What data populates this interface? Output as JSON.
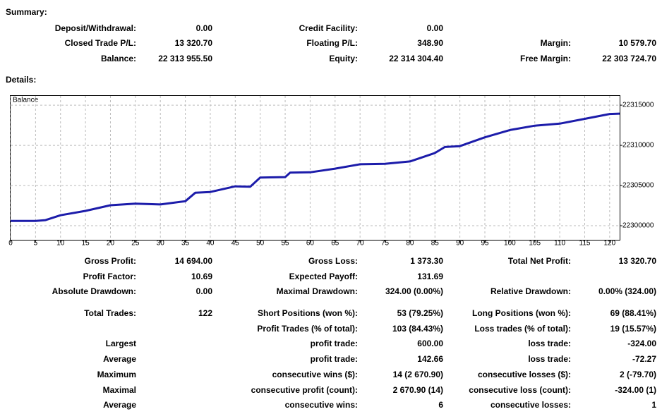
{
  "summary": {
    "title": "Summary:",
    "rows": [
      [
        "Deposit/Withdrawal:",
        "0.00",
        "Credit Facility:",
        "0.00",
        null,
        null
      ],
      [
        "Closed Trade P/L:",
        "13 320.70",
        "Floating P/L:",
        "348.90",
        "Margin:",
        "10 579.70"
      ],
      [
        "Balance:",
        "22 313 955.50",
        "Equity:",
        "22 314 304.40",
        "Free Margin:",
        "22 303 724.70"
      ]
    ]
  },
  "details": {
    "title": "Details:",
    "rows": [
      [
        "Gross Profit:",
        "14 694.00",
        "Gross Loss:",
        "1 373.30",
        "Total Net Profit:",
        "13 320.70"
      ],
      [
        "Profit Factor:",
        "10.69",
        "Expected Payoff:",
        "131.69",
        null,
        null
      ],
      [
        "Absolute Drawdown:",
        "0.00",
        "Maximal Drawdown:",
        "324.00 (0.00%)",
        "Relative Drawdown:",
        "0.00% (324.00)"
      ],
      [
        "Total Trades:",
        "122",
        "Short Positions (won %):",
        "53 (79.25%)",
        "Long Positions (won %):",
        "69 (88.41%)"
      ],
      [
        null,
        null,
        "Profit Trades (% of total):",
        "103 (84.43%)",
        "Loss trades (% of total):",
        "19 (15.57%)"
      ],
      [
        "Largest",
        null,
        "profit trade:",
        "600.00",
        "loss trade:",
        "-324.00"
      ],
      [
        "Average",
        null,
        "profit trade:",
        "142.66",
        "loss trade:",
        "-72.27"
      ],
      [
        "Maximum",
        null,
        "consecutive wins ($):",
        "14 (2 670.90)",
        "consecutive losses ($):",
        "2 (-79.70)"
      ],
      [
        "Maximal",
        null,
        "consecutive profit (count):",
        "2 670.90 (14)",
        "consecutive loss (count):",
        "-324.00 (1)"
      ],
      [
        "Average",
        null,
        "consecutive wins:",
        "6",
        "consecutive losses:",
        "1"
      ]
    ]
  },
  "chart_data": {
    "type": "line",
    "x": [
      0,
      5,
      7,
      10,
      15,
      20,
      25,
      30,
      35,
      37,
      40,
      45,
      48,
      50,
      55,
      56,
      60,
      65,
      70,
      75,
      80,
      85,
      87,
      90,
      95,
      100,
      105,
      110,
      115,
      120,
      122
    ],
    "series": [
      {
        "name": "Balance",
        "color": "#1c1caa",
        "values": [
          22300600,
          22300600,
          22300700,
          22301300,
          22301850,
          22302550,
          22302750,
          22302650,
          22303050,
          22304100,
          22304200,
          22304900,
          22304850,
          22306000,
          22306050,
          22306600,
          22306650,
          22307100,
          22307650,
          22307700,
          22308000,
          22309050,
          22309800,
          22309900,
          22311000,
          22311900,
          22312450,
          22312700,
          22313300,
          22313900,
          22313950
        ]
      }
    ],
    "xlim": [
      0,
      122
    ],
    "ylim": [
      22298250,
      22316150
    ],
    "xticks": [
      0,
      5,
      10,
      15,
      20,
      25,
      30,
      35,
      40,
      45,
      50,
      55,
      60,
      65,
      70,
      75,
      80,
      85,
      90,
      95,
      100,
      105,
      110,
      115,
      120
    ],
    "yticks": [
      22300000,
      22305000,
      22310000,
      22315000
    ],
    "grid": true
  }
}
